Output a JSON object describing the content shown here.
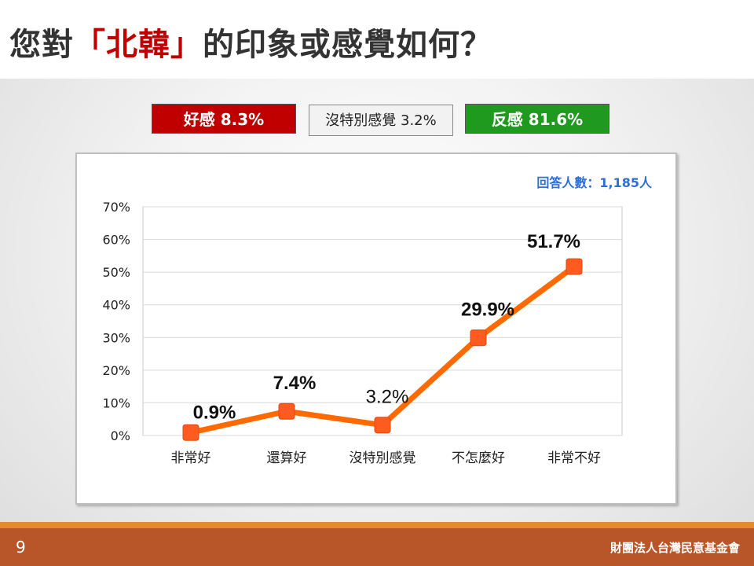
{
  "title": {
    "prefix": "您對",
    "highlight": "「北韓」",
    "suffix": "的印象或感覺如何？"
  },
  "summary": {
    "good": "好感 8.3%",
    "neutral": "沒特別感覺 3.2%",
    "bad": "反感 81.6%"
  },
  "colors": {
    "accent_red": "#c00000",
    "good_bg": "#c00000",
    "bad_bg": "#1f9a1f",
    "line": "#ff6a00",
    "marker": "#ff5a1f",
    "footer": "#b8562a",
    "footer_line": "#e68a2e"
  },
  "chart_data": {
    "type": "line",
    "categories": [
      "非常好",
      "還算好",
      "沒特別感覺",
      "不怎麼好",
      "非常不好"
    ],
    "values": [
      0.9,
      7.4,
      3.2,
      29.9,
      51.7
    ],
    "data_labels": [
      "0.9%",
      "7.4%",
      "3.2%",
      "29.9%",
      "51.7%"
    ],
    "ylim": [
      0,
      70
    ],
    "y_ticks": [
      "0%",
      "10%",
      "20%",
      "30%",
      "40%",
      "50%",
      "60%",
      "70%"
    ],
    "annotation": "回答人數：1,185人",
    "grid": true
  },
  "footer": {
    "page": "9",
    "org": "財團法人台灣民意基金會"
  }
}
